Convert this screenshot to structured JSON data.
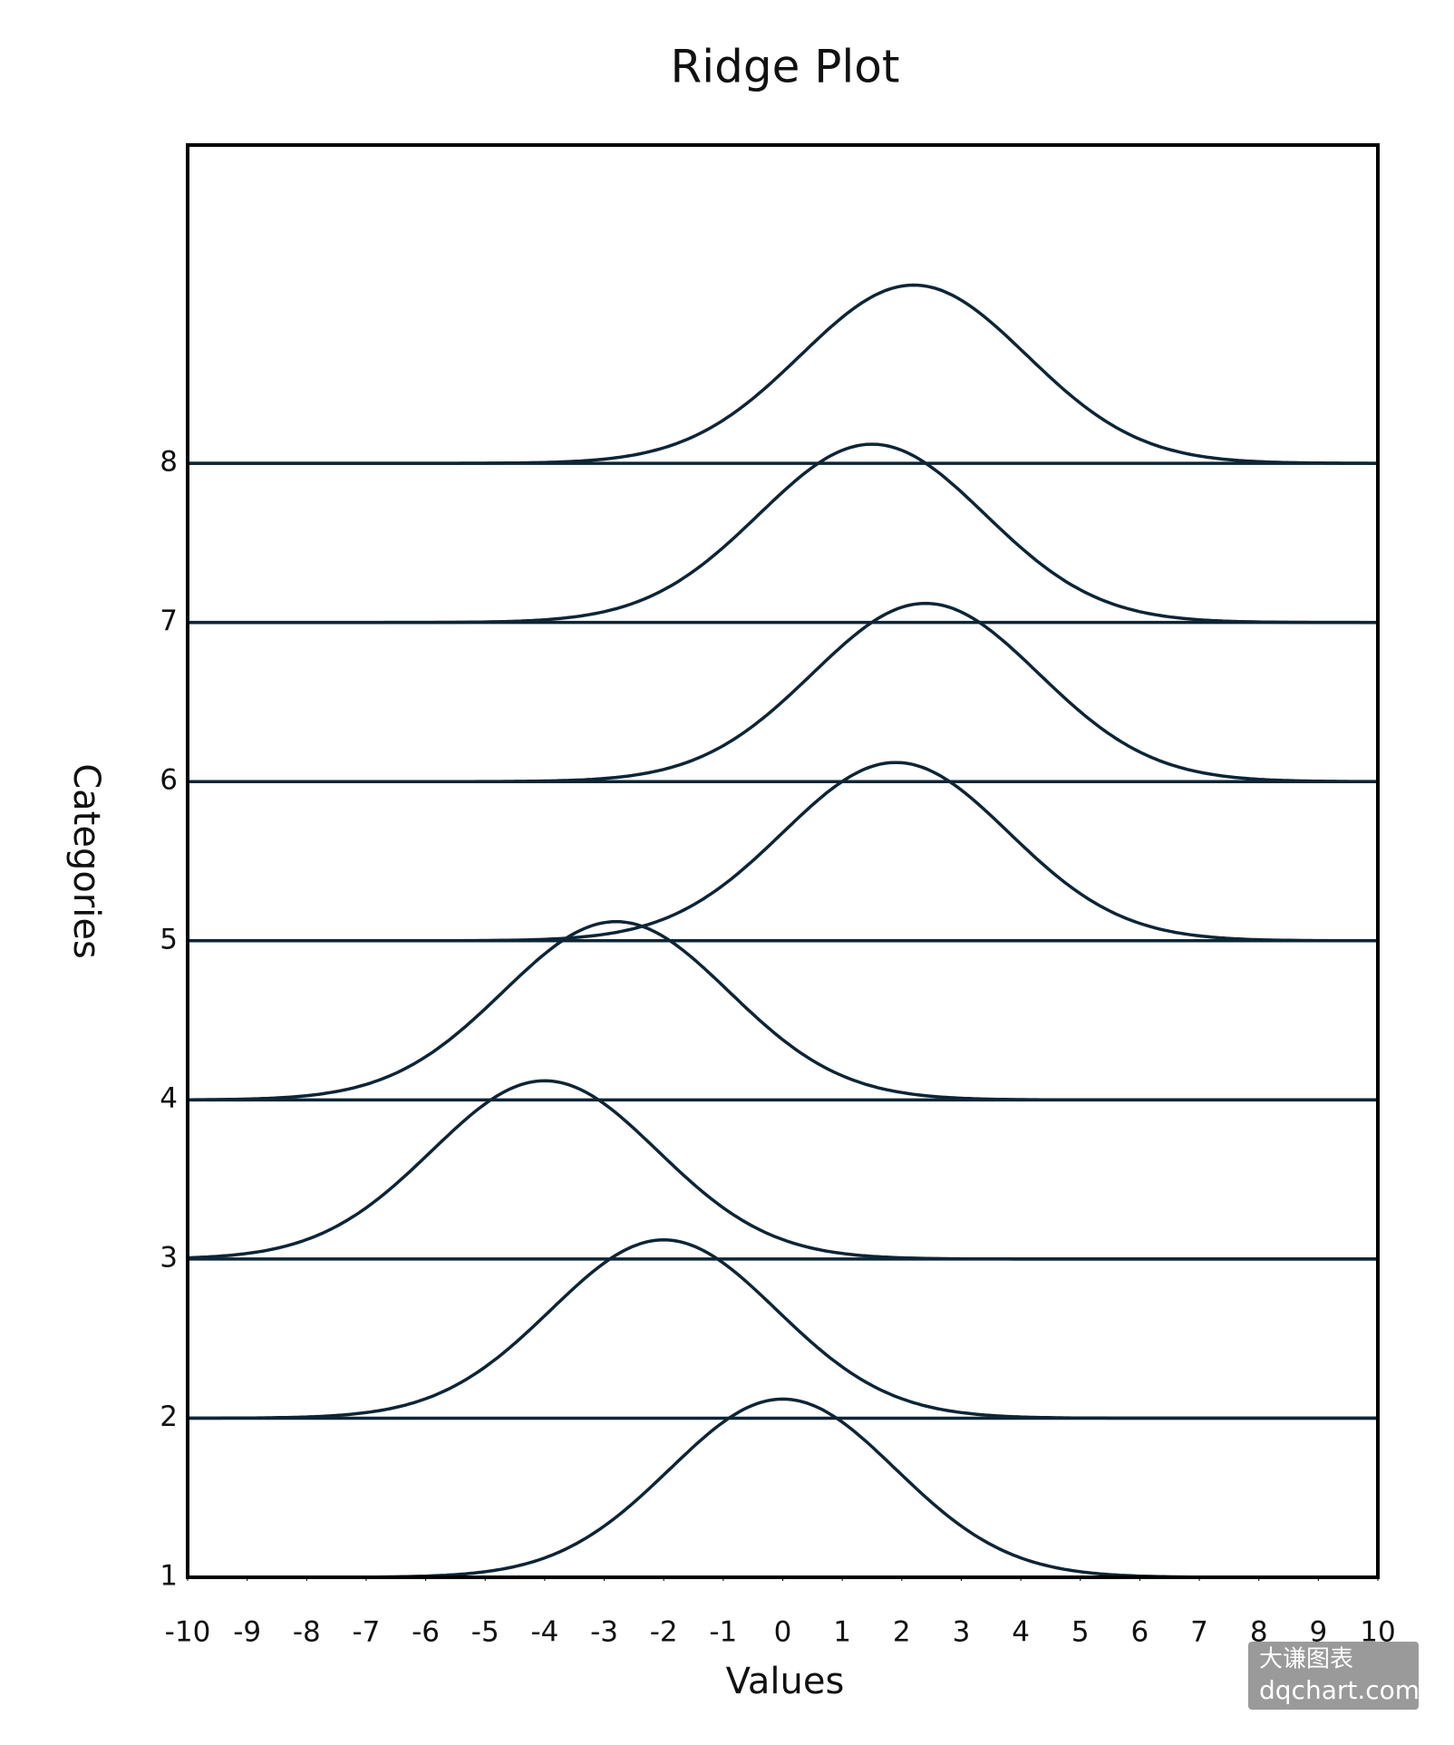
{
  "chart_data": {
    "type": "ridge",
    "title": "Ridge Plot",
    "x_label": "Values",
    "y_label": "Categories",
    "color": "#0d2535",
    "series": [
      {
        "name": "1",
        "mean": 0,
        "sd": 1.9,
        "peak": 1.12
      },
      {
        "name": "2",
        "mean": -2,
        "sd": 1.9,
        "peak": 1.12
      },
      {
        "name": "3",
        "mean": -4,
        "sd": 1.9,
        "peak": 1.12
      },
      {
        "name": "4",
        "mean": -2.8,
        "sd": 1.9,
        "peak": 1.12
      },
      {
        "name": "5",
        "mean": 1.9,
        "sd": 1.9,
        "peak": 1.12
      },
      {
        "name": "6",
        "mean": 2.4,
        "sd": 1.9,
        "peak": 1.12
      },
      {
        "name": "7",
        "mean": 1.5,
        "sd": 1.9,
        "peak": 1.12
      },
      {
        "name": "8",
        "mean": 2.2,
        "sd": 1.9,
        "peak": 1.12
      }
    ],
    "xlim": [
      -10,
      10
    ],
    "xticks": [
      -10,
      -9,
      -8,
      -7,
      -6,
      -5,
      -4,
      -3,
      -2,
      -1,
      0,
      1,
      2,
      3,
      4,
      5,
      6,
      7,
      8,
      9,
      10
    ],
    "ylim": [
      1,
      10
    ],
    "yticks": [
      1,
      2,
      3,
      4,
      5,
      6,
      7,
      8
    ],
    "watermark": [
      "大谦图表",
      "dqchart.com"
    ]
  }
}
